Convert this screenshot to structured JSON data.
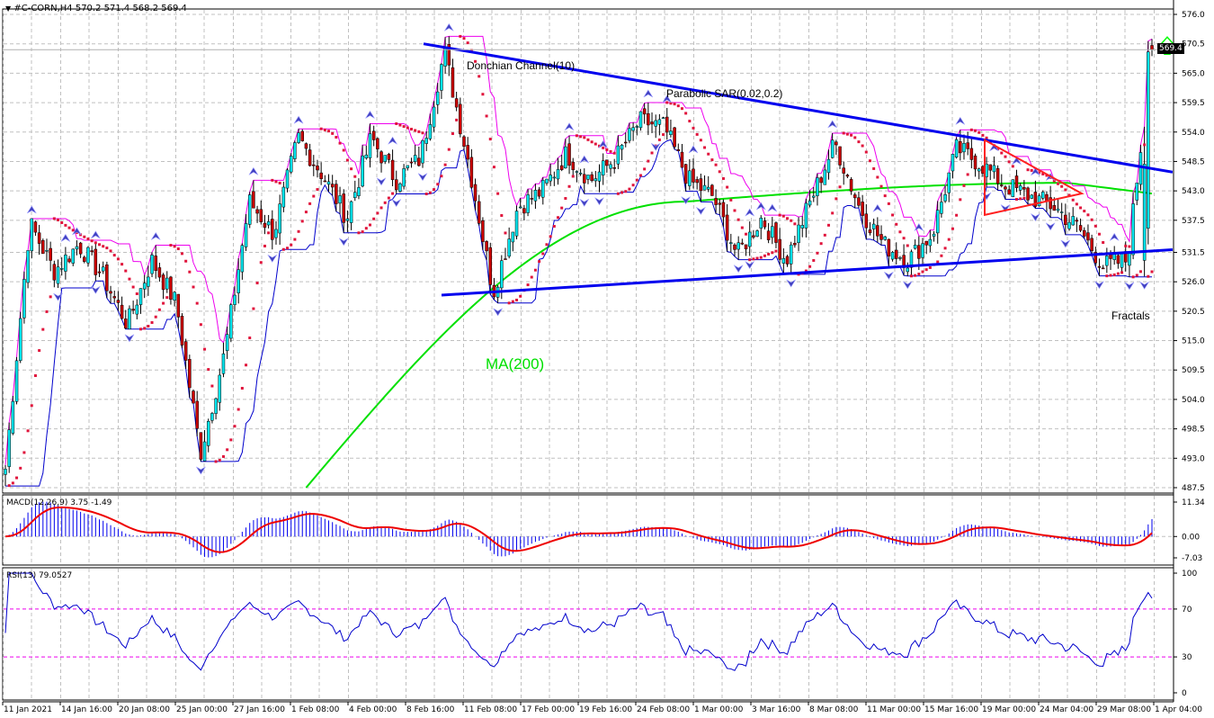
{
  "header": {
    "menu_icon": "triangle-down-icon",
    "symbol": "#C-CORN,H4",
    "ohlc": "570.2 571.4 568.2 569.4",
    "text": "#C-CORN,H4  570.2 571.4 568.2 569.4"
  },
  "annotations": {
    "donchian": "Donchian Channel(10)",
    "psar": "Parabolic SAR(0.02,0.2)",
    "ma": "MA(200)",
    "fractals": "Fractals"
  },
  "indicators": {
    "macd_label": "MACD(12,26,9) 3.75 -1.49",
    "rsi_label": "RSI(13) 79.0527"
  },
  "price_tag": "569.4",
  "signal_icon": "green-up-arrow-icon",
  "colors": {
    "bull": "#00e5ee",
    "bear": "#cc0000",
    "trend": "#0000ee",
    "donch_up": "#ee00ee",
    "donch_low": "#0000cc",
    "psar": "#e0143c",
    "ma": "#00e000",
    "triangle": "#ff2020",
    "macd_hist": "#0000ee",
    "macd_signal": "#ee0000",
    "rsi": "#0000cc",
    "rsi_levels": "#ee00ee",
    "grid": "#c0c0c0"
  },
  "chart_data": [
    {
      "type": "candlestick",
      "title": "#C-CORN,H4",
      "ohlc_last": {
        "open": 570.2,
        "high": 571.4,
        "low": 568.2,
        "close": 569.4
      },
      "ylim": [
        487.5,
        576.0
      ],
      "y_ticks": [
        576.0,
        570.5,
        565.0,
        559.5,
        554.0,
        548.5,
        543.0,
        537.5,
        531.5,
        526.0,
        520.5,
        515.0,
        509.5,
        504.0,
        498.5,
        493.0,
        487.5
      ],
      "x_ticks": [
        "11 Jan 2021",
        "14 Jan 16:00",
        "20 Jan 08:00",
        "25 Jan 00:00",
        "27 Jan 16:00",
        "1 Feb 08:00",
        "4 Feb 00:00",
        "8 Feb 16:00",
        "11 Feb 08:00",
        "17 Feb 00:00",
        "19 Feb 16:00",
        "24 Feb 08:00",
        "1 Mar 00:00",
        "3 Mar 16:00",
        "8 Mar 08:00",
        "11 Mar 00:00",
        "15 Mar 16:00",
        "19 Mar 00:00",
        "24 Mar 04:00",
        "29 Mar 08:00",
        "1 Apr 04:00"
      ],
      "close_path": [
        {
          "x": "11 Jan 2021",
          "y": 491
        },
        {
          "x": "12 Jan",
          "y": 537
        },
        {
          "x": "13 Jan",
          "y": 528
        },
        {
          "x": "14 Jan 16:00",
          "y": 533
        },
        {
          "x": "18 Jan",
          "y": 527
        },
        {
          "x": "20 Jan 08:00",
          "y": 518
        },
        {
          "x": "21 Jan",
          "y": 530
        },
        {
          "x": "22 Jan",
          "y": 522
        },
        {
          "x": "25 Jan 00:00",
          "y": 494
        },
        {
          "x": "26 Jan",
          "y": 513
        },
        {
          "x": "27 Jan 16:00",
          "y": 541
        },
        {
          "x": "28 Jan",
          "y": 535
        },
        {
          "x": "29 Jan",
          "y": 553
        },
        {
          "x": "1 Feb 08:00",
          "y": 546
        },
        {
          "x": "2 Feb",
          "y": 538
        },
        {
          "x": "3 Feb",
          "y": 553
        },
        {
          "x": "4 Feb 00:00",
          "y": 545
        },
        {
          "x": "5 Feb",
          "y": 549
        },
        {
          "x": "8 Feb 16:00",
          "y": 569
        },
        {
          "x": "9 Feb",
          "y": 548
        },
        {
          "x": "10 Feb",
          "y": 524
        },
        {
          "x": "11 Feb 08:00",
          "y": 540
        },
        {
          "x": "12 Feb",
          "y": 543
        },
        {
          "x": "17 Feb 00:00",
          "y": 550
        },
        {
          "x": "18 Feb",
          "y": 545
        },
        {
          "x": "19 Feb 16:00",
          "y": 549
        },
        {
          "x": "22 Feb",
          "y": 556
        },
        {
          "x": "24 Feb 08:00",
          "y": 555
        },
        {
          "x": "25 Feb",
          "y": 545
        },
        {
          "x": "26 Feb",
          "y": 542
        },
        {
          "x": "1 Mar 00:00",
          "y": 531
        },
        {
          "x": "2 Mar",
          "y": 538
        },
        {
          "x": "3 Mar 16:00",
          "y": 530
        },
        {
          "x": "5 Mar",
          "y": 541
        },
        {
          "x": "8 Mar 08:00",
          "y": 552
        },
        {
          "x": "9 Mar",
          "y": 540
        },
        {
          "x": "10 Mar",
          "y": 533
        },
        {
          "x": "11 Mar 00:00",
          "y": 530
        },
        {
          "x": "12 Mar",
          "y": 535
        },
        {
          "x": "15 Mar 16:00",
          "y": 551
        },
        {
          "x": "17 Mar",
          "y": 548
        },
        {
          "x": "19 Mar 00:00",
          "y": 544
        },
        {
          "x": "22 Mar",
          "y": 542
        },
        {
          "x": "24 Mar 04:00",
          "y": 540
        },
        {
          "x": "26 Mar",
          "y": 536
        },
        {
          "x": "29 Mar 08:00",
          "y": 529
        },
        {
          "x": "31 Mar",
          "y": 530
        },
        {
          "x": "1 Apr 04:00",
          "y": 569.4
        }
      ],
      "overlays": {
        "donchian_channel": {
          "period": 10
        },
        "parabolic_sar": {
          "step": 0.02,
          "max": 0.2
        },
        "ma": {
          "period": 200,
          "start": 487.5,
          "end": 543.0
        },
        "upper_trendline": {
          "from": {
            "x": "8 Feb 16:00",
            "y": 570.5
          },
          "to": {
            "x": "1 Apr 04:00",
            "y": 546.5
          }
        },
        "lower_trendline": {
          "from": {
            "x": "10 Feb",
            "y": 523.5
          },
          "to": {
            "x": "1 Apr 04:00",
            "y": 532.0
          }
        },
        "triangle": {
          "points": [
            {
              "x": "19 Mar 00:00",
              "y": 552.5
            },
            {
              "x": "19 Mar 00:00",
              "y": 538.5
            },
            {
              "x": "24 Mar 04:00",
              "y": 542.5
            }
          ]
        }
      }
    },
    {
      "type": "bar+line",
      "title": "MACD(12,26,9)",
      "macd": 3.75,
      "signal": -1.49,
      "ylim": [
        -7.03,
        11.34
      ],
      "y_ticks": [
        11.34,
        0.0,
        -7.03
      ]
    },
    {
      "type": "line",
      "title": "RSI(13)",
      "value": 79.0527,
      "ylim": [
        0,
        100
      ],
      "y_ticks": [
        100,
        70,
        30,
        0
      ],
      "levels": [
        70,
        30
      ]
    }
  ]
}
